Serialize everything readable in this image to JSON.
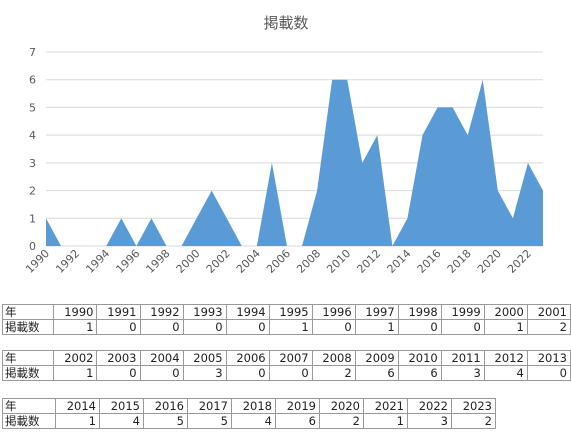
{
  "chart_data": {
    "type": "area",
    "title": "掲載数",
    "xlabel": "",
    "ylabel": "",
    "x": [
      1990,
      1991,
      1992,
      1993,
      1994,
      1995,
      1996,
      1997,
      1998,
      1999,
      2000,
      2001,
      2002,
      2003,
      2004,
      2005,
      2006,
      2007,
      2008,
      2009,
      2010,
      2011,
      2012,
      2013,
      2014,
      2015,
      2016,
      2017,
      2018,
      2019,
      2020,
      2021,
      2022,
      2023
    ],
    "values": [
      1,
      0,
      0,
      0,
      0,
      1,
      0,
      1,
      0,
      0,
      1,
      2,
      1,
      0,
      0,
      3,
      0,
      0,
      2,
      6,
      6,
      3,
      4,
      0,
      1,
      4,
      5,
      5,
      4,
      6,
      2,
      1,
      3,
      2
    ],
    "x_tick_labels": [
      "1990",
      "1992",
      "1994",
      "1996",
      "1998",
      "2000",
      "2002",
      "2004",
      "2006",
      "2008",
      "2010",
      "2012",
      "2014",
      "2016",
      "2018",
      "2020",
      "2022"
    ],
    "y_tick_labels": [
      "0",
      "1",
      "2",
      "3",
      "4",
      "5",
      "6",
      "7"
    ],
    "ylim": [
      0,
      7
    ],
    "grid": true,
    "legend": "none",
    "fill_color": "#5b9bd5",
    "grid_color": "#d9d9d9"
  },
  "tables": [
    {
      "header_label": "年",
      "value_label": "掲載数",
      "years": [
        "1990",
        "1991",
        "1992",
        "1993",
        "1994",
        "1995",
        "1996",
        "1997",
        "1998",
        "1999",
        "2000",
        "2001"
      ],
      "counts": [
        "1",
        "0",
        "0",
        "0",
        "0",
        "1",
        "0",
        "1",
        "0",
        "0",
        "1",
        "2"
      ]
    },
    {
      "header_label": "年",
      "value_label": "掲載数",
      "years": [
        "2002",
        "2003",
        "2004",
        "2005",
        "2006",
        "2007",
        "2008",
        "2009",
        "2010",
        "2011",
        "2012",
        "2013"
      ],
      "counts": [
        "1",
        "0",
        "0",
        "3",
        "0",
        "0",
        "2",
        "6",
        "6",
        "3",
        "4",
        "0"
      ]
    },
    {
      "header_label": "年",
      "value_label": "掲載数",
      "years": [
        "2014",
        "2015",
        "2016",
        "2017",
        "2018",
        "2019",
        "2020",
        "2021",
        "2022",
        "2023"
      ],
      "counts": [
        "1",
        "4",
        "5",
        "5",
        "4",
        "6",
        "2",
        "1",
        "3",
        "2"
      ]
    }
  ]
}
